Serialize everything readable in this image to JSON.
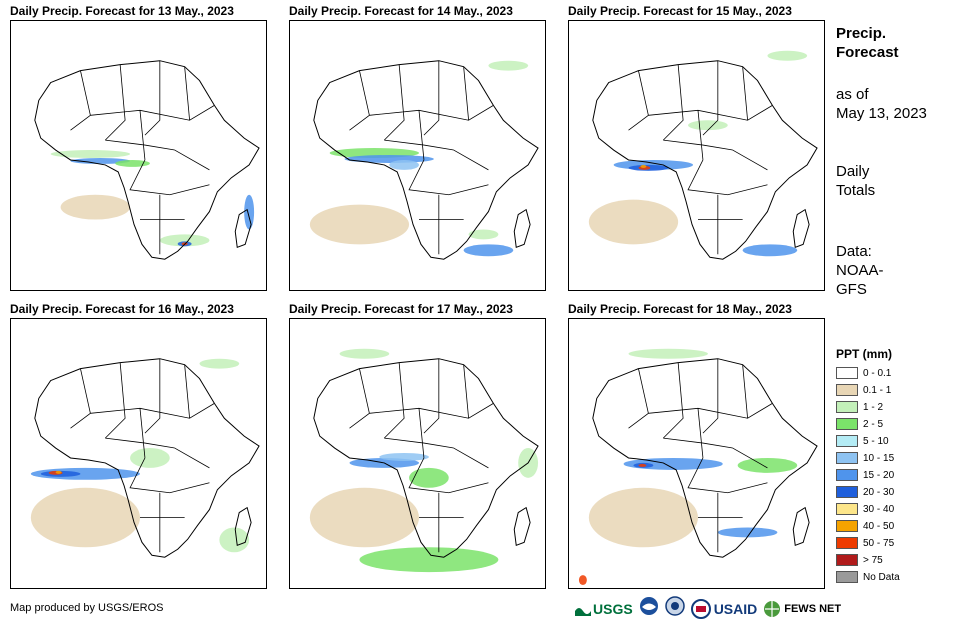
{
  "panels": [
    {
      "title": "Daily Precip. Forecast for 13 May., 2023"
    },
    {
      "title": "Daily Precip. Forecast for 14 May., 2023"
    },
    {
      "title": "Daily Precip. Forecast for 15 May., 2023"
    },
    {
      "title": "Daily Precip. Forecast for 16 May., 2023"
    },
    {
      "title": "Daily Precip. Forecast for 17 May., 2023"
    },
    {
      "title": "Daily Precip. Forecast for 18 May., 2023"
    }
  ],
  "sidebar": {
    "heading_line1": "Precip.",
    "heading_line2": "Forecast",
    "asof_line1": "as of",
    "asof_line2": "May 13, 2023",
    "totals_line1": "Daily",
    "totals_line2": "Totals",
    "data_line1": "Data:",
    "data_line2": "NOAA-",
    "data_line3": "GFS"
  },
  "legend": {
    "title": "PPT (mm)",
    "items": [
      {
        "label": "0 - 0.1",
        "color": "#ffffff"
      },
      {
        "label": "0.1 - 1",
        "color": "#e8d6b5"
      },
      {
        "label": "1 - 2",
        "color": "#c3f0b9"
      },
      {
        "label": "2 - 5",
        "color": "#7be36a"
      },
      {
        "label": "5 - 10",
        "color": "#b4ecf5"
      },
      {
        "label": "10 - 15",
        "color": "#8ec3f2"
      },
      {
        "label": "15 - 20",
        "color": "#4f94ec"
      },
      {
        "label": "20 - 30",
        "color": "#1f5fdc"
      },
      {
        "label": "30 - 40",
        "color": "#fde68a"
      },
      {
        "label": "40 - 50",
        "color": "#f5a300"
      },
      {
        "label": "50 - 75",
        "color": "#ee3b00"
      },
      {
        "label": "> 75",
        "color": "#b11b1b"
      },
      {
        "label": "No Data",
        "color": "#9a9a9a"
      }
    ]
  },
  "credit": "Map produced by USGS/EROS",
  "logos": {
    "usgs": "USGS",
    "usaid": "USAID",
    "fews": "FEWS NET"
  }
}
